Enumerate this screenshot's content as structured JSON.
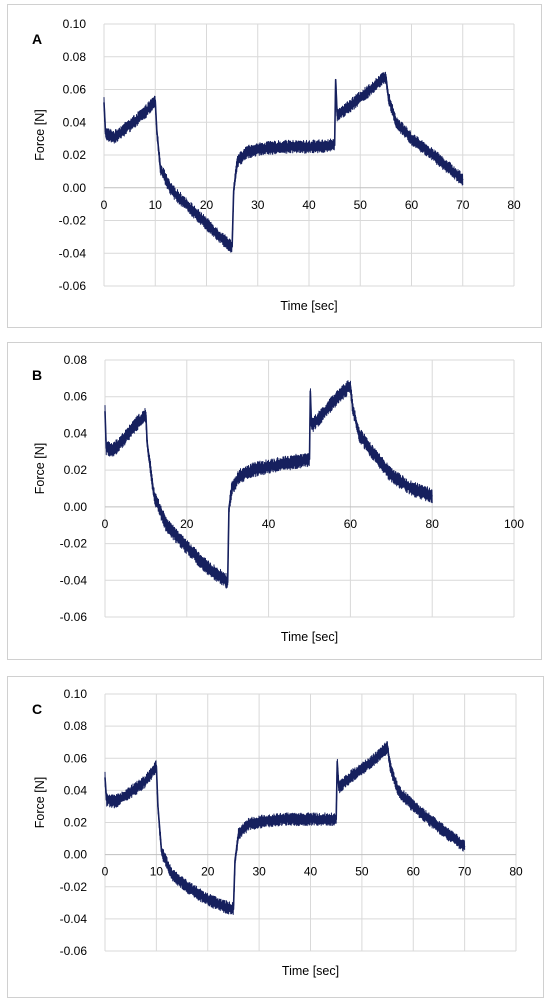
{
  "chart_data": [
    {
      "type": "line",
      "panel_label": "A",
      "xlabel": "Time [sec]",
      "ylabel": "Force [N]",
      "xlim": [
        0,
        80
      ],
      "ylim": [
        -0.06,
        0.1
      ],
      "x_ticks": [
        0,
        10,
        20,
        30,
        40,
        50,
        60,
        70,
        80
      ],
      "y_ticks": [
        -0.06,
        -0.04,
        -0.02,
        0.0,
        0.02,
        0.04,
        0.06,
        0.08,
        0.1
      ],
      "y_tick_labels": [
        "-0.06",
        "-0.04",
        "-0.02",
        "0.00",
        "0.02",
        "0.04",
        "0.06",
        "0.08",
        "0.10"
      ],
      "grid": true,
      "series_color": "#16205e",
      "series": [
        {
          "x": [
            0,
            0.3,
            2,
            5,
            8,
            10,
            10.3,
            11,
            13,
            16,
            20,
            23,
            25,
            25.3,
            26,
            28,
            31,
            35,
            40,
            45,
            45.2,
            45.5,
            48,
            52,
            55,
            55.5,
            57,
            60,
            65,
            70
          ],
          "y": [
            0.052,
            0.033,
            0.031,
            0.038,
            0.046,
            0.053,
            0.035,
            0.012,
            -0.001,
            -0.01,
            -0.022,
            -0.031,
            -0.036,
            -0.002,
            0.016,
            0.022,
            0.024,
            0.025,
            0.025,
            0.026,
            0.066,
            0.044,
            0.05,
            0.06,
            0.068,
            0.055,
            0.04,
            0.03,
            0.018,
            0.005
          ],
          "noise": 0.004
        }
      ]
    },
    {
      "type": "line",
      "panel_label": "B",
      "xlabel": "Time [sec]",
      "ylabel": "Force [N]",
      "xlim": [
        0,
        100
      ],
      "ylim": [
        -0.06,
        0.08
      ],
      "x_ticks": [
        0,
        20,
        40,
        60,
        80,
        100
      ],
      "y_ticks": [
        -0.06,
        -0.04,
        -0.02,
        0.0,
        0.02,
        0.04,
        0.06,
        0.08
      ],
      "y_tick_labels": [
        "-0.06",
        "-0.04",
        "-0.02",
        "0.00",
        "0.02",
        "0.04",
        "0.06",
        "0.08"
      ],
      "grid": true,
      "series_color": "#16205e",
      "series": [
        {
          "x": [
            0,
            0.3,
            2,
            5,
            8,
            10,
            10.3,
            12,
            15,
            20,
            25,
            29.5,
            30,
            30.3,
            31,
            33,
            36,
            40,
            45,
            50,
            50.2,
            50.5,
            53,
            57,
            60,
            60.5,
            62,
            66,
            70,
            75,
            80
          ],
          "y": [
            0.052,
            0.032,
            0.031,
            0.038,
            0.046,
            0.05,
            0.035,
            0.006,
            -0.01,
            -0.022,
            -0.033,
            -0.04,
            -0.041,
            -0.001,
            0.01,
            0.017,
            0.02,
            0.022,
            0.024,
            0.026,
            0.063,
            0.044,
            0.05,
            0.06,
            0.066,
            0.055,
            0.04,
            0.028,
            0.017,
            0.01,
            0.006
          ],
          "noise": 0.004
        }
      ]
    },
    {
      "type": "line",
      "panel_label": "C",
      "xlabel": "Time [sec]",
      "ylabel": "Force [N]",
      "xlim": [
        0,
        80
      ],
      "ylim": [
        -0.06,
        0.1
      ],
      "x_ticks": [
        0,
        10,
        20,
        30,
        40,
        50,
        60,
        70,
        80
      ],
      "y_ticks": [
        -0.06,
        -0.04,
        -0.02,
        0.0,
        0.02,
        0.04,
        0.06,
        0.08,
        0.1
      ],
      "y_tick_labels": [
        "-0.06",
        "-0.04",
        "-0.02",
        "0.00",
        "0.02",
        "0.04",
        "0.06",
        "0.08",
        "0.10"
      ],
      "grid": true,
      "series_color": "#16205e",
      "series": [
        {
          "x": [
            0,
            0.3,
            2,
            5,
            8,
            10,
            10.3,
            11,
            13,
            16,
            20,
            23,
            25,
            25.3,
            26,
            28,
            31,
            35,
            40,
            45,
            45.2,
            45.5,
            48,
            52,
            55,
            55.5,
            57,
            60,
            65,
            70
          ],
          "y": [
            0.048,
            0.034,
            0.033,
            0.039,
            0.046,
            0.055,
            0.03,
            0.002,
            -0.012,
            -0.02,
            -0.028,
            -0.032,
            -0.034,
            -0.004,
            0.013,
            0.019,
            0.021,
            0.022,
            0.022,
            0.022,
            0.058,
            0.042,
            0.049,
            0.058,
            0.067,
            0.055,
            0.04,
            0.03,
            0.017,
            0.005
          ],
          "noise": 0.004
        }
      ]
    }
  ]
}
